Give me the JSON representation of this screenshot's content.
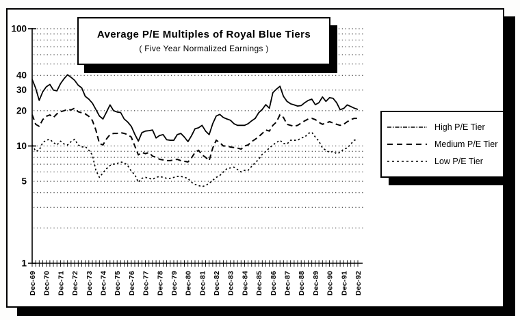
{
  "figure": {
    "title": "Average P/E Multiples of Royal Blue Tiers",
    "subtitle": "( Five Year Normalized Earnings )"
  },
  "colors": {
    "ink": "#000000",
    "paper": "#ffffff"
  },
  "chart_data": {
    "type": "line",
    "title": "Average P/E Multiples of Royal Blue Tiers",
    "subtitle": "( Five Year Normalized Earnings )",
    "y_scale": "log",
    "ylim": [
      1,
      100
    ],
    "y_ticks": [
      100,
      40,
      30,
      20,
      10,
      5,
      1
    ],
    "y_gridlines": [
      100,
      90,
      80,
      70,
      60,
      50,
      40,
      30,
      20,
      10,
      9,
      8,
      7,
      6,
      5,
      4,
      3,
      2
    ],
    "x_unit": "quarterly",
    "legend_position": "right",
    "grid": true,
    "x_tick_labels": [
      "Dec-69",
      "Dec-70",
      "Dec-71",
      "Dec-72",
      "Dec-73",
      "Dec-74",
      "Dec-75",
      "Dec-76",
      "Dec-77",
      "Dec-78",
      "Dec-79",
      "Dec-80",
      "Dec-81",
      "Dec-82",
      "Dec-83",
      "Dec-84",
      "Dec-85",
      "Dec-86",
      "Dec-87",
      "Dec-88",
      "Dec-89",
      "Dec-90",
      "Dec-91",
      "Dec-92"
    ],
    "series": [
      {
        "name": "High P/E Tier",
        "line": "solid",
        "values": [
          37,
          31,
          24.5,
          29,
          32,
          33.5,
          30,
          29.5,
          34,
          37.5,
          40.5,
          38.5,
          36.3,
          33,
          31.3,
          26.5,
          25.1,
          23.2,
          20.5,
          18,
          17,
          19.5,
          22.4,
          20,
          19.5,
          19.3,
          17,
          16,
          14.7,
          12.6,
          11,
          13,
          13.4,
          13.5,
          13.7,
          11.7,
          12.3,
          12.5,
          11.3,
          11.2,
          11.2,
          12.5,
          12.8,
          11.9,
          10.9,
          12.2,
          14,
          14.3,
          15,
          13.4,
          12.5,
          15.5,
          18,
          18.6,
          17.5,
          17,
          16.6,
          15.5,
          15,
          15,
          15,
          15.5,
          16.4,
          17.2,
          19.2,
          20.5,
          22.5,
          21,
          28.5,
          30.5,
          32.3,
          26.5,
          24,
          22.9,
          22.4,
          21.9,
          22.1,
          23.4,
          24.5,
          25.1,
          22.5,
          23.4,
          26.2,
          24,
          25.8,
          25.5,
          23.4,
          20.4,
          20.9,
          22.4,
          21.7,
          21,
          20.5
        ]
      },
      {
        "name": "Medium P/E Tier",
        "line": "dashed",
        "values": [
          18.5,
          15.3,
          14.7,
          16.8,
          17.9,
          18.4,
          17.5,
          18.8,
          19.6,
          20,
          20.5,
          20.3,
          21,
          19.6,
          19.2,
          18.8,
          17.9,
          16.5,
          13.7,
          10.5,
          10.2,
          11.5,
          12.5,
          12.8,
          12.8,
          13,
          12.8,
          12.5,
          11.9,
          10,
          8.4,
          8.8,
          8.6,
          8.8,
          8.2,
          8,
          7.7,
          7.6,
          7.5,
          7.5,
          7.6,
          7.7,
          7.5,
          7.4,
          7.3,
          7.9,
          8.8,
          9.2,
          8.4,
          8,
          7.5,
          9.6,
          11.2,
          10.7,
          10,
          10,
          9.8,
          9.7,
          9.6,
          9.4,
          10,
          10.2,
          10.9,
          11.4,
          12,
          12.8,
          13.7,
          13.4,
          15,
          16,
          18.5,
          17.5,
          15.3,
          15,
          14.7,
          15,
          15.7,
          16.4,
          17,
          17.2,
          16.8,
          15.9,
          15.3,
          15.7,
          16.1,
          15.7,
          15.3,
          15,
          15.3,
          16.1,
          16.8,
          17.2,
          17.2
        ]
      },
      {
        "name": "Low P/E Tier",
        "line": "dotted",
        "values": [
          10.2,
          9,
          9.2,
          10.7,
          11.2,
          11.4,
          10.7,
          10.2,
          11,
          10.4,
          10.2,
          10.9,
          11.4,
          10.2,
          9.8,
          9.9,
          9.2,
          8.4,
          6.2,
          5.4,
          5.9,
          6.4,
          6.8,
          7,
          7.1,
          7.3,
          7.2,
          6.8,
          6.1,
          5.7,
          4.9,
          5.3,
          5.4,
          5.3,
          5.2,
          5.4,
          5.5,
          5.4,
          5.3,
          5.3,
          5.4,
          5.5,
          5.5,
          5.4,
          5.3,
          4.9,
          4.7,
          4.6,
          4.5,
          4.6,
          4.8,
          5.1,
          5.4,
          5.6,
          6,
          6.4,
          6.5,
          6.6,
          6.3,
          6,
          6.2,
          6.2,
          6.7,
          7.2,
          7.7,
          8.5,
          9,
          9.6,
          10.2,
          10.7,
          11.2,
          10.5,
          10.4,
          11.2,
          11.2,
          11.2,
          11.7,
          11.9,
          12.8,
          13.1,
          11.9,
          11,
          9.6,
          9.2,
          8.8,
          9,
          8.6,
          8.8,
          9.4,
          9.6,
          10.4,
          11.2,
          11.4
        ]
      }
    ]
  }
}
